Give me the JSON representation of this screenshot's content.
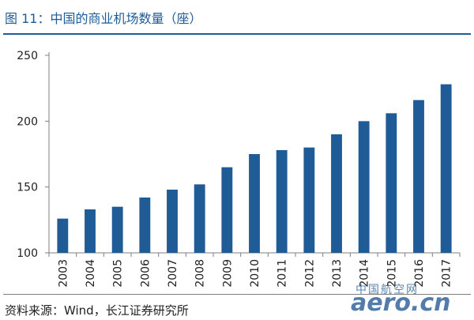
{
  "figure_title": "图 11：中国的商业机场数量（座）",
  "source": "资料来源：Wind，长江证券研究所",
  "watermark": {
    "cn": "中国航空网",
    "en": "aero.cn",
    "color": "#1a4f8f"
  },
  "colors": {
    "bar": "#1f5b97",
    "title": "#1f5b97",
    "axis": "#7f7f7f"
  },
  "chart_data": {
    "type": "bar",
    "title": "",
    "xlabel": "",
    "ylabel": "",
    "categories": [
      "2003",
      "2004",
      "2005",
      "2006",
      "2007",
      "2008",
      "2009",
      "2010",
      "2011",
      "2012",
      "2013",
      "2014",
      "2015",
      "2016",
      "2017"
    ],
    "values": [
      126,
      133,
      135,
      142,
      148,
      152,
      165,
      175,
      178,
      180,
      190,
      200,
      206,
      216,
      228
    ],
    "ylim": [
      100,
      250
    ],
    "yticks": [
      100,
      150,
      200,
      250
    ],
    "grid": false,
    "legend": "none",
    "x_tick_rotation": -90
  }
}
